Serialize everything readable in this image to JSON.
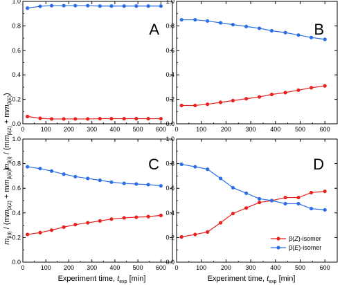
{
  "figure": {
    "ylabel_prefix": "m",
    "ylabel_sub1": "β(i)",
    "ylabel_mid": " / (m",
    "ylabel_sub2": "β(Z)",
    "ylabel_plus": " + m",
    "ylabel_sub3": "β(E)",
    "ylabel_close": ")",
    "xlabel_prefix": "Experiment time, ",
    "xlabel_t": "t",
    "xlabel_sub": "exp",
    "xlabel_unit": " [min]",
    "legend": [
      {
        "prefix": "β(",
        "italic": "Z",
        "suffix": ")-isomer",
        "color": "#e8201e"
      },
      {
        "prefix": "β(",
        "italic": "E",
        "suffix": ")-isomer",
        "color": "#2a6ee8"
      }
    ]
  },
  "chart_data": [
    {
      "type": "line",
      "panel": "A",
      "xlim": [
        0,
        650
      ],
      "ylim": [
        0,
        1.0
      ],
      "x_ticks": [
        0,
        100,
        200,
        300,
        400,
        500,
        600
      ],
      "y_ticks": [
        0.0,
        0.2,
        0.4,
        0.6,
        0.8,
        1.0
      ],
      "x": [
        20,
        75,
        125,
        178,
        228,
        282,
        335,
        385,
        440,
        493,
        545,
        600
      ],
      "series": [
        {
          "name": "β(Z)-isomer",
          "color": "#e8201e",
          "values": [
            0.06,
            0.045,
            0.04,
            0.04,
            0.04,
            0.04,
            0.042,
            0.042,
            0.042,
            0.042,
            0.042,
            0.042
          ]
        },
        {
          "name": "β(E)-isomer",
          "color": "#2a6ee8",
          "values": [
            0.945,
            0.96,
            0.965,
            0.965,
            0.965,
            0.965,
            0.962,
            0.962,
            0.962,
            0.962,
            0.962,
            0.962
          ]
        }
      ]
    },
    {
      "type": "line",
      "panel": "B",
      "xlim": [
        0,
        650
      ],
      "ylim": [
        0,
        1.0
      ],
      "x_ticks": [
        0,
        100,
        200,
        300,
        400,
        500,
        600
      ],
      "y_ticks": [
        0.0,
        0.2,
        0.4,
        0.6,
        0.8,
        1.0
      ],
      "x": [
        20,
        75,
        125,
        178,
        228,
        282,
        335,
        385,
        440,
        493,
        545,
        600
      ],
      "series": [
        {
          "name": "β(Z)-isomer",
          "color": "#e8201e",
          "values": [
            0.15,
            0.15,
            0.16,
            0.175,
            0.19,
            0.205,
            0.22,
            0.24,
            0.255,
            0.275,
            0.295,
            0.31
          ]
        },
        {
          "name": "β(E)-isomer",
          "color": "#2a6ee8",
          "values": [
            0.85,
            0.85,
            0.84,
            0.825,
            0.81,
            0.795,
            0.78,
            0.76,
            0.745,
            0.725,
            0.705,
            0.69
          ]
        }
      ]
    },
    {
      "type": "line",
      "panel": "C",
      "xlim": [
        0,
        650
      ],
      "ylim": [
        0,
        1.0
      ],
      "x_ticks": [
        0,
        100,
        200,
        300,
        400,
        500,
        600
      ],
      "y_ticks": [
        0.0,
        0.2,
        0.4,
        0.6,
        0.8,
        1.0
      ],
      "x": [
        20,
        75,
        125,
        178,
        228,
        282,
        335,
        385,
        440,
        493,
        545,
        600
      ],
      "series": [
        {
          "name": "β(Z)-isomer",
          "color": "#e8201e",
          "values": [
            0.225,
            0.24,
            0.26,
            0.285,
            0.305,
            0.32,
            0.335,
            0.35,
            0.36,
            0.365,
            0.37,
            0.38
          ]
        },
        {
          "name": "β(E)-isomer",
          "color": "#2a6ee8",
          "values": [
            0.775,
            0.76,
            0.74,
            0.715,
            0.695,
            0.68,
            0.665,
            0.65,
            0.64,
            0.635,
            0.63,
            0.62
          ]
        }
      ]
    },
    {
      "type": "line",
      "panel": "D",
      "xlim": [
        0,
        650
      ],
      "ylim": [
        0,
        1.0
      ],
      "x_ticks": [
        0,
        100,
        200,
        300,
        400,
        500,
        600
      ],
      "y_ticks": [
        0.0,
        0.2,
        0.4,
        0.6,
        0.8,
        1.0
      ],
      "legend_position": "bottom-right",
      "x": [
        20,
        75,
        125,
        178,
        228,
        282,
        335,
        385,
        440,
        493,
        545,
        600
      ],
      "series": [
        {
          "name": "β(Z)-isomer",
          "color": "#e8201e",
          "values": [
            0.205,
            0.225,
            0.245,
            0.32,
            0.395,
            0.44,
            0.485,
            0.5,
            0.525,
            0.525,
            0.565,
            0.575
          ]
        },
        {
          "name": "β(E)-isomer",
          "color": "#2a6ee8",
          "values": [
            0.795,
            0.775,
            0.755,
            0.68,
            0.605,
            0.56,
            0.515,
            0.5,
            0.475,
            0.475,
            0.435,
            0.425
          ]
        }
      ]
    }
  ]
}
